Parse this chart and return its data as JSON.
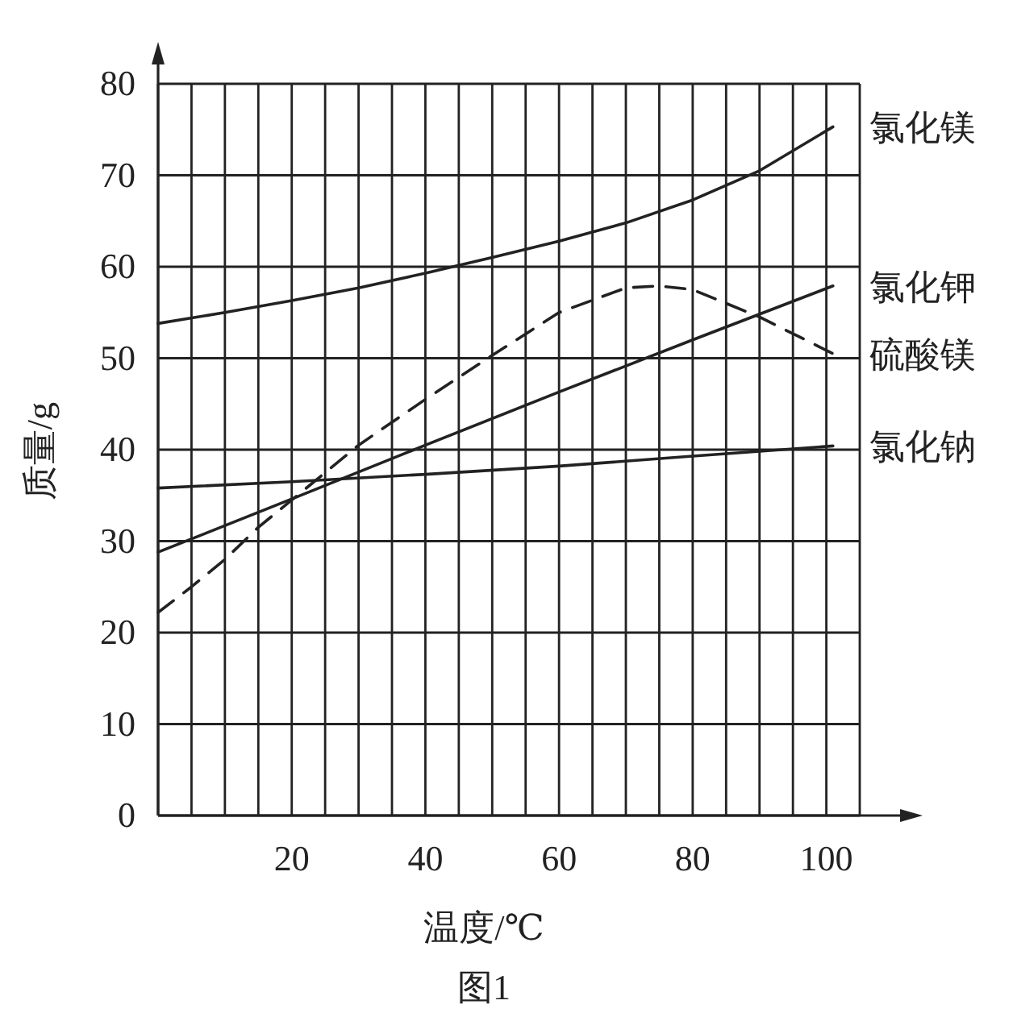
{
  "chart_data": {
    "type": "line",
    "xlabel": "温度/℃",
    "ylabel": "质量/g",
    "annotations": [
      "图1"
    ],
    "xlim": [
      0,
      105
    ],
    "ylim": [
      0,
      80
    ],
    "xticks": [
      {
        "value": 0,
        "label": null
      },
      {
        "value": 5,
        "label": null
      },
      {
        "value": 10,
        "label": null
      },
      {
        "value": 15,
        "label": null
      },
      20,
      {
        "value": 25,
        "label": null
      },
      {
        "value": 30,
        "label": null
      },
      {
        "value": 35,
        "label": null
      },
      40,
      {
        "value": 45,
        "label": null
      },
      {
        "value": 50,
        "label": null
      },
      {
        "value": 55,
        "label": null
      },
      60,
      {
        "value": 65,
        "label": null
      },
      {
        "value": 70,
        "label": null
      },
      {
        "value": 75,
        "label": null
      },
      80,
      {
        "value": 85,
        "label": null
      },
      {
        "value": 90,
        "label": null
      },
      {
        "value": 95,
        "label": null
      },
      100,
      {
        "value": 105,
        "label": null
      }
    ],
    "yticks": [
      0,
      10,
      20,
      30,
      40,
      50,
      60,
      70,
      80
    ],
    "grid": true,
    "series": [
      {
        "name": "氯化镁",
        "color": "#222222",
        "line_style": "solid",
        "x": [
          0,
          10,
          20,
          30,
          40,
          50,
          60,
          70,
          80,
          90,
          101
        ],
        "values": [
          53.8,
          55,
          56.3,
          57.7,
          59.3,
          61,
          62.8,
          64.8,
          67.3,
          70.5,
          75.3
        ]
      },
      {
        "name": "氯化钾",
        "color": "#222222",
        "line_style": "solid",
        "x": [
          0,
          20,
          40,
          60,
          80,
          101
        ],
        "values": [
          28.8,
          34.6,
          40.5,
          46.3,
          52,
          57.9
        ]
      },
      {
        "name": "硫酸镁",
        "color": "#222222",
        "line_style": "dashed",
        "x": [
          0,
          5,
          10,
          15,
          20,
          25,
          30,
          40,
          50,
          60,
          70,
          75,
          80,
          90,
          101
        ],
        "values": [
          22.2,
          25,
          28,
          31.5,
          34.5,
          37.5,
          40.5,
          45.5,
          50.3,
          55,
          57.7,
          57.9,
          57.5,
          54.5,
          50.5
        ]
      },
      {
        "name": "氯化钠",
        "color": "#222222",
        "line_style": "solid",
        "x": [
          0,
          20,
          40,
          60,
          80,
          101
        ],
        "values": [
          35.8,
          36.5,
          37.3,
          38.2,
          39.3,
          40.4
        ]
      }
    ]
  }
}
